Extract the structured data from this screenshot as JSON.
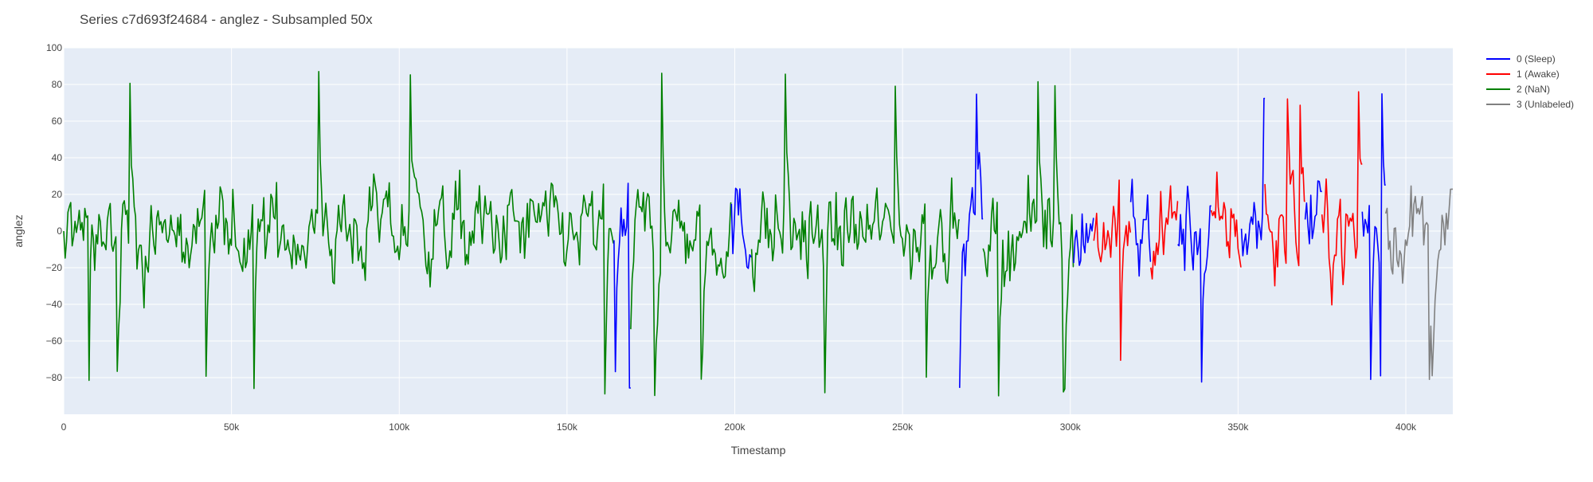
{
  "chart_data": {
    "type": "line",
    "title": "Series c7d693f24684 - anglez - Subsampled 50x",
    "xlabel": "Timestamp",
    "ylabel": "anglez",
    "xlim": [
      0,
      414000
    ],
    "ylim": [
      -100,
      100
    ],
    "x_ticks": [
      0,
      50000,
      100000,
      150000,
      200000,
      250000,
      300000,
      350000,
      400000
    ],
    "x_tick_labels": [
      "0",
      "50k",
      "100k",
      "150k",
      "200k",
      "250k",
      "300k",
      "350k",
      "400k"
    ],
    "y_ticks": [
      -80,
      -60,
      -40,
      -20,
      0,
      20,
      40,
      60,
      80,
      100
    ],
    "grid": true,
    "legend_position": "top-right",
    "plot_background": "#e5ecf6",
    "series": [
      {
        "name": "0 (Sleep)",
        "color": "#0000ff",
        "segments": [
          [
            164000,
            169000
          ],
          [
            199000,
            205000
          ],
          [
            267000,
            274000
          ],
          [
            301000,
            307000
          ],
          [
            318000,
            324000
          ],
          [
            332000,
            342000
          ],
          [
            351000,
            358000
          ],
          [
            370000,
            375000
          ],
          [
            387000,
            394000
          ]
        ],
        "value_range": [
          -86,
          84
        ]
      },
      {
        "name": "1 (Awake)",
        "color": "#ff0000",
        "segments": [
          [
            307000,
            318000
          ],
          [
            324000,
            332000
          ],
          [
            342000,
            351000
          ],
          [
            358000,
            370000
          ],
          [
            375000,
            387000
          ]
        ],
        "value_range": [
          -76,
          80
        ]
      },
      {
        "name": "2 (NaN)",
        "color": "#008000",
        "segments": [
          [
            0,
            164000
          ],
          [
            169000,
            199000
          ],
          [
            205000,
            267000
          ],
          [
            274000,
            301000
          ]
        ],
        "value_range": [
          -90,
          90
        ]
      },
      {
        "name": "3 (Unlabeled)",
        "color": "#808080",
        "segments": [
          [
            394000,
            414000
          ]
        ],
        "value_range": [
          -90,
          85
        ]
      }
    ]
  }
}
